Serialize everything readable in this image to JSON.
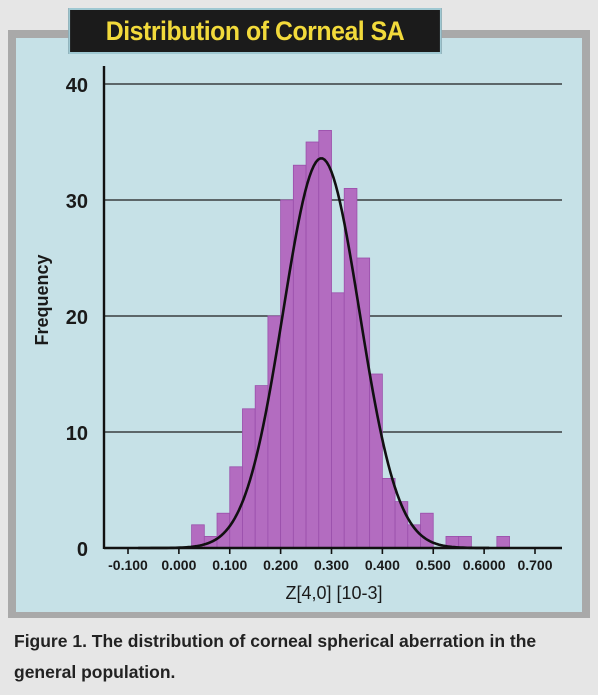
{
  "colors": {
    "background": "#e6e6e6",
    "frame": "#a9a9a9",
    "panel": "#c6e1e7",
    "banner_bg": "#1b1b1b",
    "title_text": "#f2da3b",
    "bar_fill": "#b36cc0",
    "bar_edge": "#9a4fab",
    "curve": "#111111"
  },
  "chart_data": {
    "type": "bar",
    "title": "Distribution of Corneal SA",
    "xlabel": "Z[4,0] [10-3]",
    "ylabel": "Frequency",
    "ylim": [
      0,
      40
    ],
    "xlim": [
      -0.125,
      0.725
    ],
    "grid": "horizontal",
    "x_ticks": [
      -0.1,
      0.0,
      0.1,
      0.2,
      0.3,
      0.4,
      0.5,
      0.6,
      0.7
    ],
    "x_tick_labels": [
      "-0.100",
      "0.000",
      "0.100",
      "0.200",
      "0.300",
      "0.400",
      "0.500",
      "0.6000",
      "0.700"
    ],
    "y_ticks": [
      0,
      10,
      20,
      30,
      40
    ],
    "y_tick_labels": [
      "0",
      "10",
      "20",
      "30",
      "40"
    ],
    "bin_width": 0.025,
    "series": [
      {
        "values_kind": "histogram",
        "bin_starts": [
          0.025,
          0.05,
          0.075,
          0.1,
          0.125,
          0.15,
          0.175,
          0.2,
          0.225,
          0.25,
          0.275,
          0.3,
          0.325,
          0.35,
          0.375,
          0.4,
          0.425,
          0.45,
          0.475,
          0.5,
          0.525,
          0.55,
          0.575,
          0.6,
          0.625
        ],
        "values": [
          2,
          1,
          3,
          7,
          12,
          14,
          20,
          30,
          33,
          35,
          36,
          22,
          31,
          25,
          15,
          6,
          4,
          2,
          3,
          0,
          1,
          1,
          0,
          0,
          1
        ]
      },
      {
        "values_kind": "normal-fit-curve",
        "mean": 0.28,
        "sd": 0.075,
        "peak": 33.6,
        "x_range": [
          -0.08,
          0.61
        ]
      }
    ]
  },
  "caption": "Figure 1. The distribution of corneal spherical aberration in the general population."
}
